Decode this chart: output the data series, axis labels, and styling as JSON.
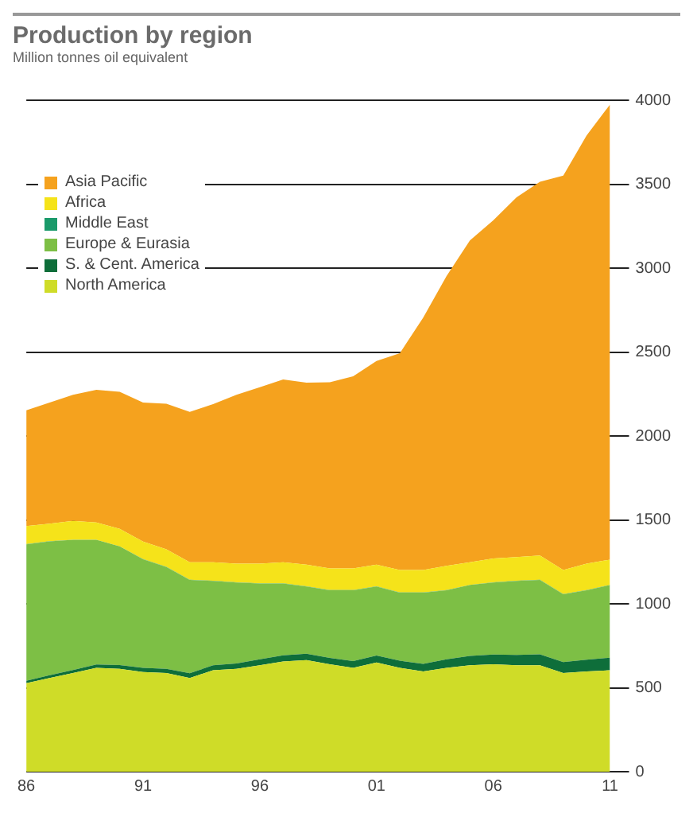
{
  "chart_data": {
    "type": "area",
    "title": "Production by region",
    "subtitle": "Million tonnes oil equivalent",
    "stacked": true,
    "x": [
      1986,
      1987,
      1988,
      1989,
      1990,
      1991,
      1992,
      1993,
      1994,
      1995,
      1996,
      1997,
      1998,
      1999,
      2000,
      2001,
      2002,
      2003,
      2004,
      2005,
      2006,
      2007,
      2008,
      2009,
      2010,
      2011
    ],
    "xlim": [
      1986,
      2011
    ],
    "xticks": [
      {
        "value": 1986,
        "label": "86"
      },
      {
        "value": 1991,
        "label": "91"
      },
      {
        "value": 1996,
        "label": "96"
      },
      {
        "value": 2001,
        "label": "01"
      },
      {
        "value": 2006,
        "label": "06"
      },
      {
        "value": 2011,
        "label": "11"
      }
    ],
    "ylim": [
      0,
      4000
    ],
    "yticks": [
      0,
      500,
      1000,
      1500,
      2000,
      2500,
      3000,
      3500,
      4000
    ],
    "grid": "y",
    "legend": "top left",
    "series": [
      {
        "name": "North America",
        "color": "#cfdc28",
        "values": [
          527,
          558,
          588,
          619,
          613,
          594,
          588,
          558,
          604,
          613,
          634,
          656,
          665,
          640,
          619,
          650,
          619,
          597,
          619,
          634,
          640,
          634,
          634,
          588,
          597,
          604
        ]
      },
      {
        "name": "S. & Cent. America",
        "color": "#0e6e3a",
        "values": [
          15,
          17,
          18,
          20,
          22,
          24,
          25,
          28,
          30,
          32,
          35,
          37,
          38,
          38,
          40,
          42,
          42,
          45,
          50,
          55,
          58,
          62,
          65,
          65,
          70,
          75
        ]
      },
      {
        "name": "Europe & Eurasia",
        "color": "#7dbf45",
        "values": [
          812,
          797,
          775,
          742,
          707,
          647,
          606,
          556,
          502,
          482,
          452,
          428,
          400,
          403,
          422,
          411,
          405,
          424,
          412,
          423,
          429,
          440,
          443,
          404,
          414,
          433
        ]
      },
      {
        "name": "Middle East",
        "color": "#1a9a6a",
        "values": [
          1,
          1,
          1,
          1,
          1,
          1,
          1,
          1,
          1,
          1,
          1,
          1,
          1,
          1,
          1,
          1,
          1,
          1,
          1,
          1,
          1,
          1,
          1,
          1,
          1,
          1
        ]
      },
      {
        "name": "Africa",
        "color": "#f5e31a",
        "values": [
          108,
          105,
          112,
          103,
          104,
          105,
          105,
          105,
          111,
          111,
          117,
          126,
          129,
          129,
          129,
          129,
          135,
          135,
          144,
          135,
          142,
          142,
          145,
          144,
          157,
          150
        ]
      },
      {
        "name": "Asia Pacific",
        "color": "#f5a21e",
        "values": [
          690,
          721,
          751,
          790,
          816,
          828,
          867,
          895,
          942,
          1006,
          1051,
          1089,
          1085,
          1109,
          1144,
          1214,
          1291,
          1503,
          1727,
          1917,
          2014,
          2143,
          2226,
          2349,
          2551,
          2711
        ]
      }
    ]
  }
}
